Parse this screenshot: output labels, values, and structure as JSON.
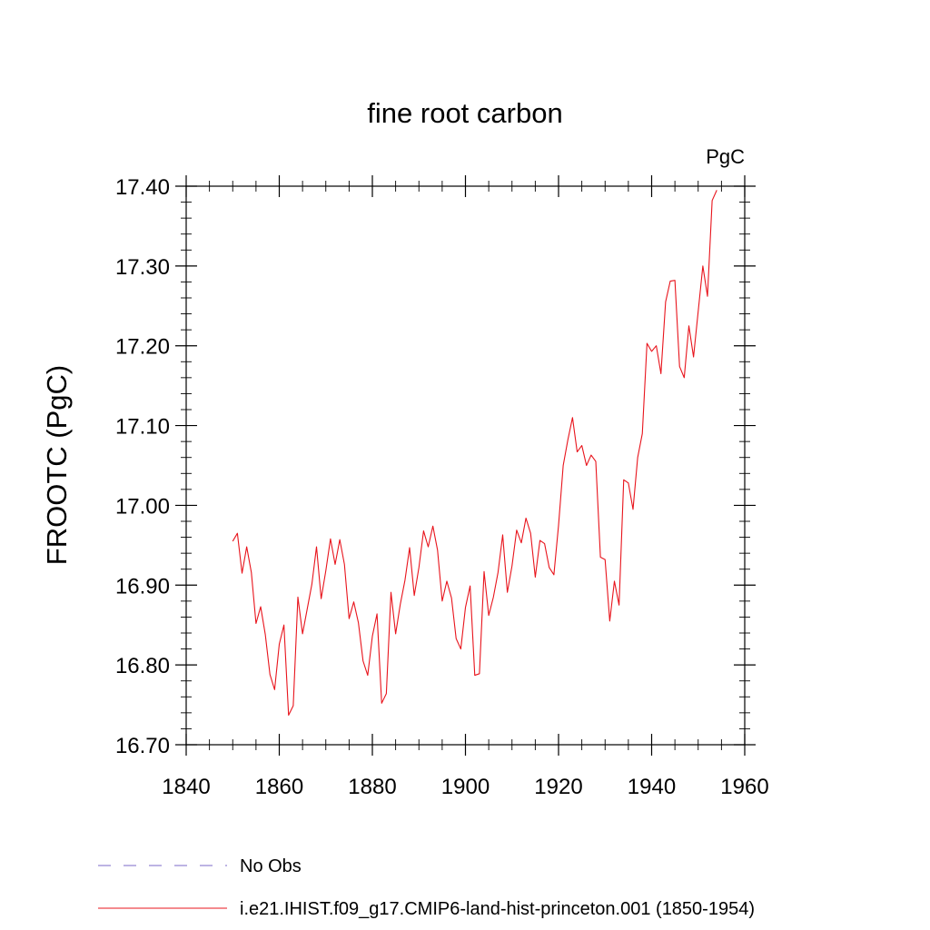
{
  "chart_data": {
    "type": "line",
    "title": "fine root carbon",
    "units_label": "PgC",
    "ylabel": "FROOTC  (PgC)",
    "xlabel": "",
    "xlim": [
      1840,
      1960
    ],
    "ylim": [
      16.7,
      17.4
    ],
    "x_ticks": [
      1840,
      1860,
      1880,
      1900,
      1920,
      1940,
      1960
    ],
    "y_ticks": [
      "16.70",
      "16.80",
      "16.90",
      "17.00",
      "17.10",
      "17.20",
      "17.30",
      "17.40"
    ],
    "grid": false,
    "legend_position": "bottom-left",
    "series": [
      {
        "name": "No Obs",
        "style": "dashed",
        "color": "#7b68c8",
        "x": [],
        "values": []
      },
      {
        "name": "i.e21.IHIST.f09_g17.CMIP6-land-hist-princeton.001 (1850-1954)",
        "style": "solid",
        "color": "#e8141c",
        "x": [
          1850,
          1851,
          1852,
          1853,
          1854,
          1855,
          1856,
          1857,
          1858,
          1859,
          1860,
          1861,
          1862,
          1863,
          1864,
          1865,
          1866,
          1867,
          1868,
          1869,
          1870,
          1871,
          1872,
          1873,
          1874,
          1875,
          1876,
          1877,
          1878,
          1879,
          1880,
          1881,
          1882,
          1883,
          1884,
          1885,
          1886,
          1887,
          1888,
          1889,
          1890,
          1891,
          1892,
          1893,
          1894,
          1895,
          1896,
          1897,
          1898,
          1899,
          1900,
          1901,
          1902,
          1903,
          1904,
          1905,
          1906,
          1907,
          1908,
          1909,
          1910,
          1911,
          1912,
          1913,
          1914,
          1915,
          1916,
          1917,
          1918,
          1919,
          1920,
          1921,
          1922,
          1923,
          1924,
          1925,
          1926,
          1927,
          1928,
          1929,
          1930,
          1931,
          1932,
          1933,
          1934,
          1935,
          1936,
          1937,
          1938,
          1939,
          1940,
          1941,
          1942,
          1943,
          1944,
          1945,
          1946,
          1947,
          1948,
          1949,
          1950,
          1951,
          1952,
          1953,
          1954
        ],
        "values": [
          16.955,
          16.965,
          16.915,
          16.948,
          16.916,
          16.852,
          16.873,
          16.838,
          16.788,
          16.769,
          16.826,
          16.85,
          16.737,
          16.749,
          16.885,
          16.839,
          16.87,
          16.901,
          16.948,
          16.883,
          16.918,
          16.958,
          16.926,
          16.957,
          16.926,
          16.858,
          16.879,
          16.853,
          16.805,
          16.787,
          16.836,
          16.864,
          16.752,
          16.764,
          16.891,
          16.839,
          16.876,
          16.906,
          16.947,
          16.887,
          16.922,
          16.968,
          16.948,
          16.974,
          16.944,
          16.88,
          16.905,
          16.884,
          16.833,
          16.82,
          16.872,
          16.899,
          16.787,
          16.789,
          16.917,
          16.862,
          16.885,
          16.916,
          16.963,
          16.891,
          16.924,
          16.969,
          16.953,
          16.984,
          16.965,
          16.91,
          16.956,
          16.952,
          16.922,
          16.913,
          16.975,
          17.05,
          17.082,
          17.11,
          17.067,
          17.075,
          17.05,
          17.063,
          17.055,
          16.935,
          16.932,
          16.855,
          16.905,
          16.875,
          17.032,
          17.028,
          16.995,
          17.06,
          17.09,
          17.203,
          17.193,
          17.2,
          17.165,
          17.255,
          17.281,
          17.282,
          17.174,
          17.16,
          17.225,
          17.186,
          17.243,
          17.3,
          17.262,
          17.382,
          17.395
        ]
      }
    ]
  }
}
